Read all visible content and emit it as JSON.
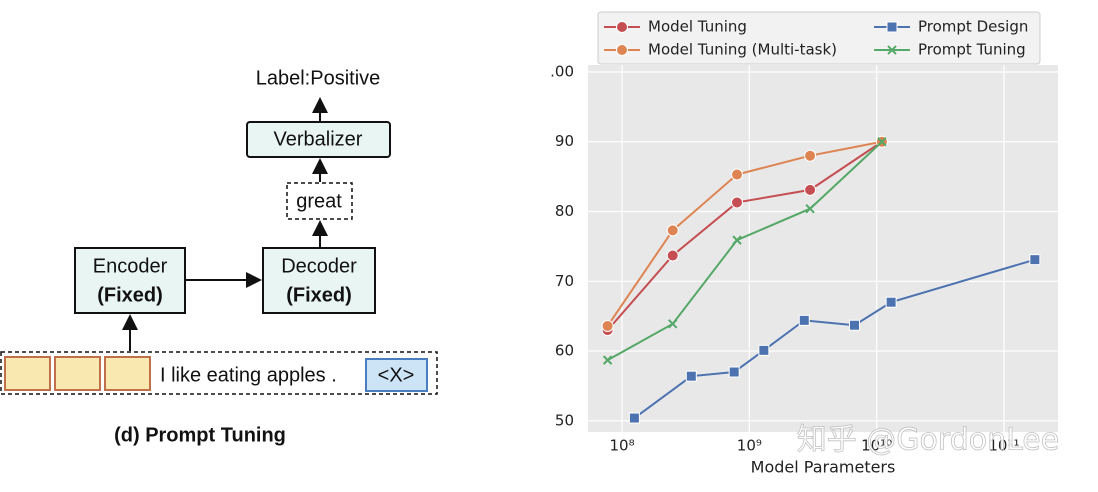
{
  "diagram": {
    "output": "Label:Positive",
    "verbalizer": "Verbalizer",
    "token": "great",
    "encoder": {
      "label": "Encoder",
      "note": "(Fixed)"
    },
    "decoder": {
      "label": "Decoder",
      "note": "(Fixed)"
    },
    "input": "I like eating apples .",
    "mask": "<X>",
    "caption": "(d) Prompt Tuning"
  },
  "chart_data": {
    "type": "line",
    "xlabel": "Model Parameters",
    "watermark": "知乎 @GordonLee",
    "xscale": "log",
    "xlim": [
      54000000,
      266000000000
    ],
    "ylim": [
      48.4,
      101
    ],
    "xticks": [
      {
        "value": 100000000,
        "label": "10⁸"
      },
      {
        "value": 1000000000,
        "label": "10⁹"
      },
      {
        "value": 10000000000,
        "label": "10¹⁰"
      },
      {
        "value": 100000000000,
        "label": "10¹¹"
      }
    ],
    "yticks": [
      50,
      60,
      70,
      80,
      90,
      {
        "value": 100,
        "label": ".00"
      }
    ],
    "grid": true,
    "legend": "top",
    "series": [
      {
        "name": "Model Tuning",
        "color": "#c44e52",
        "marker": "circle",
        "x": [
          77000000,
          250000000,
          800000000,
          3000000000,
          11000000000
        ],
        "values": [
          63.0,
          73.7,
          81.3,
          83.1,
          90.0
        ]
      },
      {
        "name": "Prompt Design",
        "color": "#4c72b0",
        "marker": "square",
        "x": [
          125000000,
          350000000,
          760000000,
          1300000000,
          2700000000,
          6700000000,
          13000000000,
          175000000000
        ],
        "values": [
          50.4,
          56.4,
          57.0,
          60.1,
          64.4,
          63.7,
          67.0,
          73.1
        ]
      },
      {
        "name": "Model Tuning (Multi-task)",
        "color": "#dd8452",
        "marker": "circle",
        "x": [
          77000000,
          250000000,
          800000000,
          3000000000,
          11000000000
        ],
        "values": [
          63.6,
          77.3,
          85.3,
          88.0,
          90.0
        ]
      },
      {
        "name": "Prompt Tuning",
        "color": "#55a868",
        "marker": "x",
        "x": [
          77000000,
          250000000,
          800000000,
          3000000000,
          11000000000
        ],
        "values": [
          58.7,
          63.9,
          75.9,
          80.4,
          90.0
        ]
      }
    ]
  }
}
